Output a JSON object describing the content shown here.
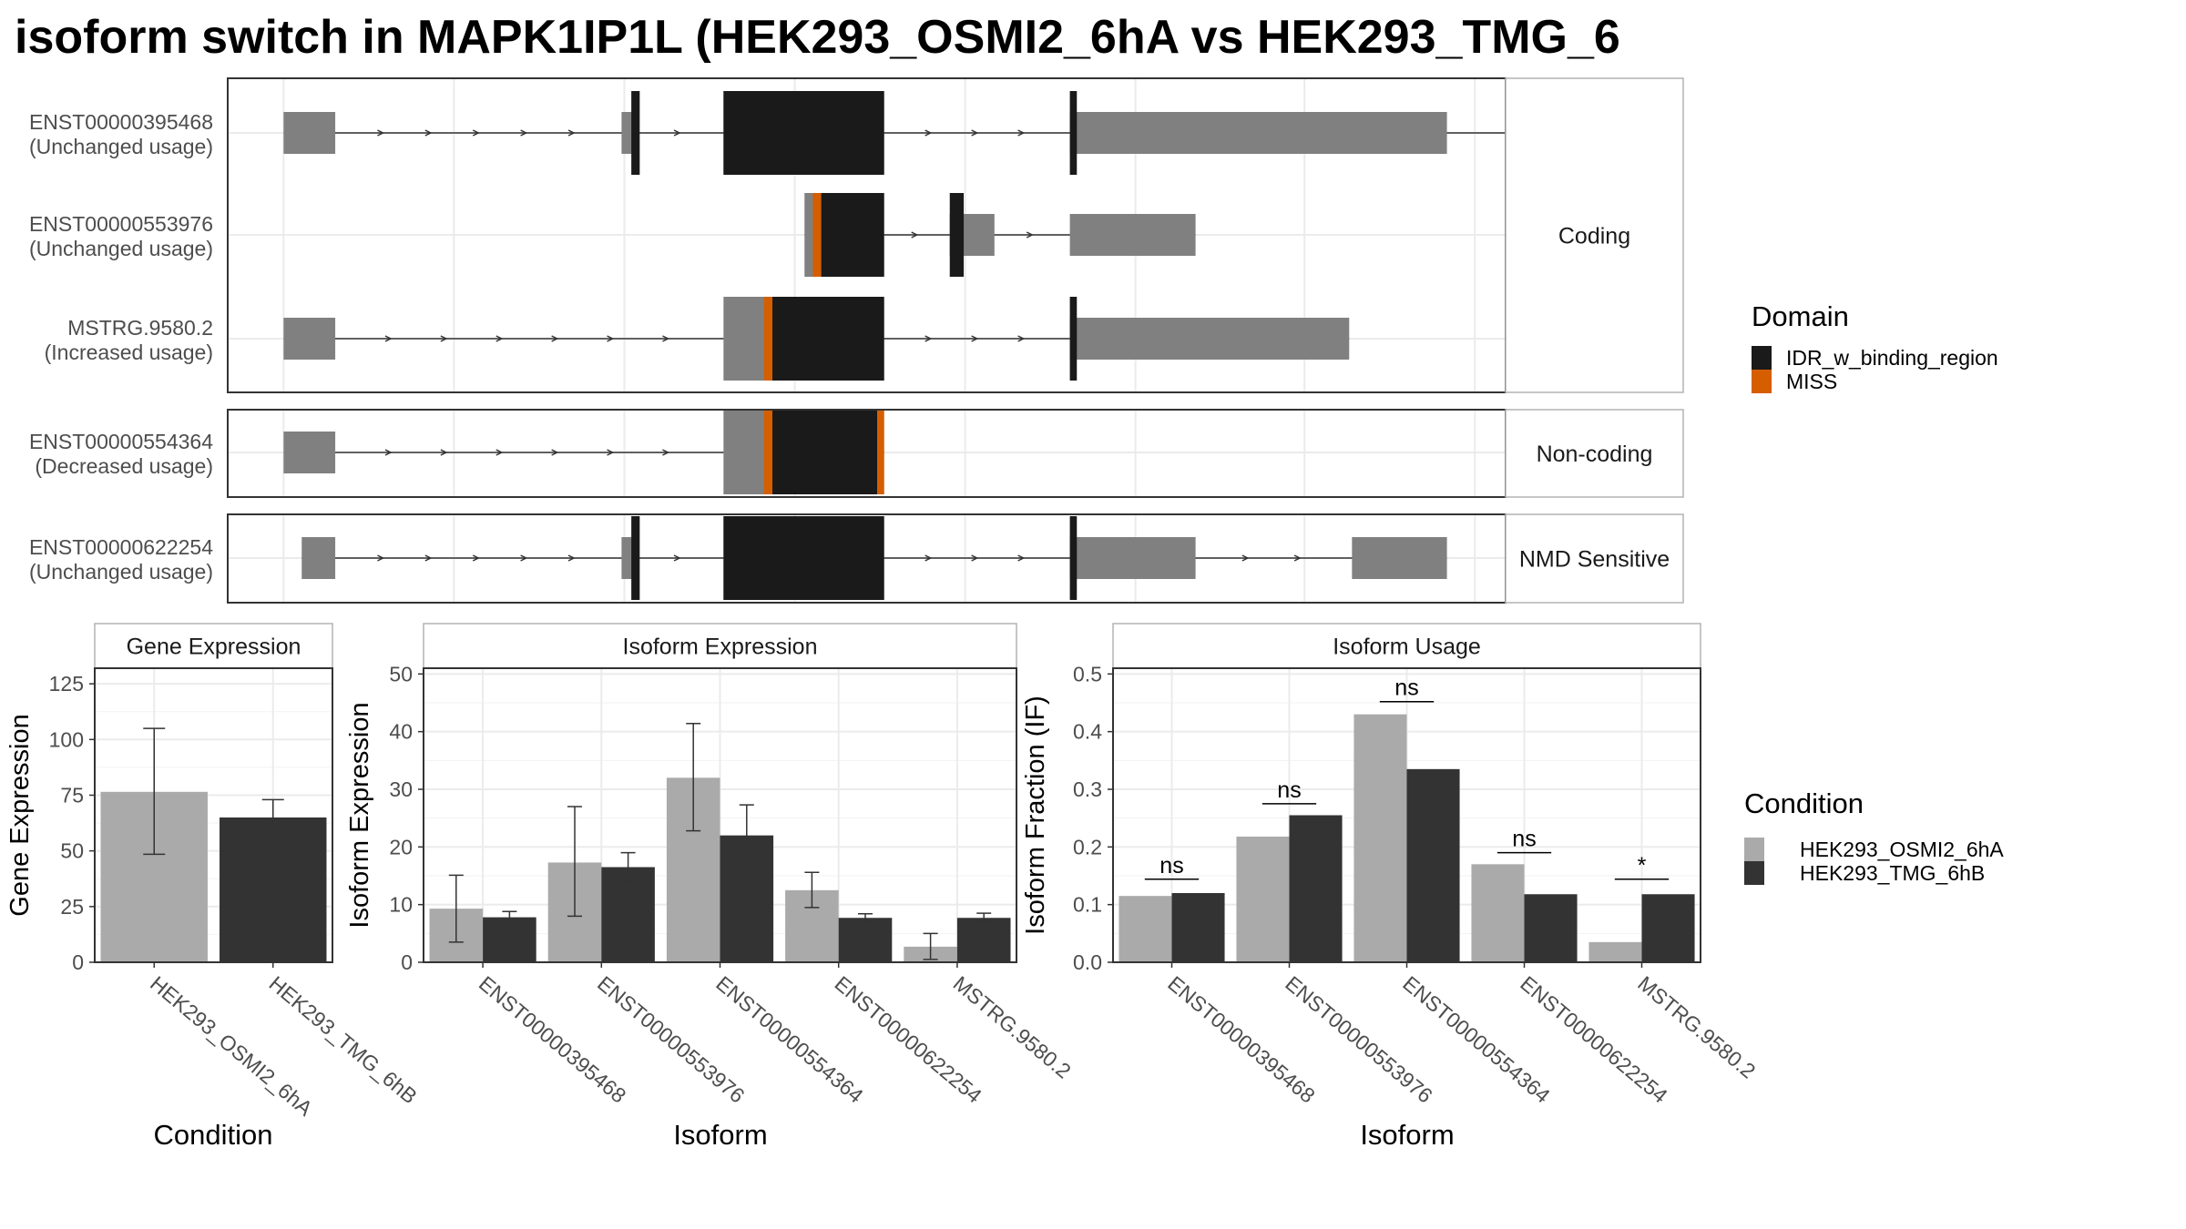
{
  "title": "isoform switch in MAPK1IP1L (HEK293_OSMI2_6hA vs HEK293_TMG_6",
  "colors": {
    "exon": "#808080",
    "idr": "#1a1a1a",
    "miss": "#d55e00",
    "condA": "#aaaaaa",
    "condB": "#333333",
    "grid": "#ebebeb",
    "panel_border": "#333333",
    "strip_bg": "#ffffff",
    "strip_border": "#b3b3b3"
  },
  "structure": {
    "groups": [
      {
        "label": "Coding",
        "rows": [
          0,
          1,
          2
        ]
      },
      {
        "label": "Non-coding",
        "rows": [
          3
        ]
      },
      {
        "label": "NMD Sensitive",
        "rows": [
          4
        ]
      }
    ],
    "transcripts": [
      {
        "id": "ENST00000395468",
        "usage": "(Unchanged usage)",
        "span": [
          40,
          1032
        ],
        "exons": [
          [
            40,
            77,
            "gene"
          ],
          [
            282,
            292,
            "small"
          ],
          [
            355,
            470,
            "big"
          ],
          [
            603,
            873,
            "gene"
          ]
        ],
        "domains": [
          [
            289,
            295,
            "idr"
          ],
          [
            355,
            470,
            "idr"
          ],
          [
            603,
            608,
            "idr"
          ]
        ]
      },
      {
        "id": "ENST00000553976",
        "usage": "(Unchanged usage)",
        "span": [
          413,
          693
        ],
        "exons": [
          [
            413,
            470,
            "big"
          ],
          [
            517,
            549,
            "small"
          ],
          [
            603,
            693,
            "gene"
          ]
        ],
        "domains": [
          [
            419,
            425,
            "miss"
          ],
          [
            425,
            470,
            "idr"
          ],
          [
            517,
            527,
            "idr"
          ]
        ]
      },
      {
        "id": "MSTRG.9580.2",
        "usage": "(Increased usage)",
        "span": [
          40,
          803
        ],
        "exons": [
          [
            40,
            77,
            "gene"
          ],
          [
            355,
            470,
            "big"
          ],
          [
            603,
            803,
            "gene"
          ]
        ],
        "domains": [
          [
            384,
            390,
            "miss"
          ],
          [
            390,
            470,
            "idr"
          ],
          [
            603,
            608,
            "idr"
          ]
        ]
      },
      {
        "id": "ENST00000554364",
        "usage": "(Decreased usage)",
        "span": [
          40,
          470
        ],
        "exons": [
          [
            40,
            77,
            "gene"
          ],
          [
            355,
            470,
            "big"
          ]
        ],
        "domains": [
          [
            384,
            390,
            "miss"
          ],
          [
            390,
            465,
            "idr"
          ],
          [
            465,
            470,
            "miss"
          ]
        ]
      },
      {
        "id": "ENST00000622254",
        "usage": "(Unchanged usage)",
        "span": [
          53,
          873
        ],
        "exons": [
          [
            53,
            77,
            "gene"
          ],
          [
            282,
            292,
            "small"
          ],
          [
            355,
            470,
            "big"
          ],
          [
            603,
            693,
            "gene"
          ],
          [
            805,
            873,
            "gene"
          ]
        ],
        "domains": [
          [
            289,
            295,
            "idr"
          ],
          [
            355,
            470,
            "idr"
          ],
          [
            603,
            608,
            "idr"
          ]
        ]
      }
    ],
    "xrange": [
      0,
      915
    ]
  },
  "legend_domain": {
    "title": "Domain",
    "items": [
      {
        "label": "IDR_w_binding_region",
        "color": "#1a1a1a"
      },
      {
        "label": "MISS",
        "color": "#d55e00"
      }
    ]
  },
  "legend_condition": {
    "title": "Condition",
    "items": [
      {
        "label": "HEK293_OSMI2_6hA",
        "color": "#aaaaaa"
      },
      {
        "label": "HEK293_TMG_6hB",
        "color": "#333333"
      }
    ]
  },
  "chart_data": [
    {
      "type": "bar",
      "strip": "Gene Expression",
      "xlabel": "Condition",
      "ylabel": "Gene Expression",
      "ylim": [
        0,
        132
      ],
      "yticks": [
        0,
        25,
        50,
        75,
        100,
        125
      ],
      "categories": [
        "HEK293_OSMI2_6hA",
        "HEK293_TMG_6hB"
      ],
      "values": [
        76.5,
        65
      ],
      "err_low": [
        48.5,
        57.5
      ],
      "err_high": [
        105,
        73
      ]
    },
    {
      "type": "bar",
      "strip": "Isoform Expression",
      "xlabel": "Isoform",
      "ylabel": "Isoform Expression",
      "ylim": [
        0,
        51
      ],
      "yticks": [
        0,
        10,
        20,
        30,
        40,
        50
      ],
      "categories": [
        "ENST00000395468",
        "ENST00000553976",
        "ENST00000554364",
        "ENST00000622254",
        "MSTRG.9580.2"
      ],
      "series": [
        {
          "name": "HEK293_OSMI2_6hA",
          "values": [
            9.3,
            17.3,
            32,
            12.5,
            2.7
          ],
          "err_low": [
            3.5,
            8,
            22.8,
            9.5,
            0.5
          ],
          "err_high": [
            15.1,
            27,
            41.4,
            15.6,
            5
          ]
        },
        {
          "name": "HEK293_TMG_6hB",
          "values": [
            7.8,
            16.5,
            22,
            7.7,
            7.7
          ],
          "err_low": [
            6.8,
            14,
            16.7,
            7,
            7
          ],
          "err_high": [
            8.8,
            19,
            27.3,
            8.4,
            8.5
          ]
        }
      ]
    },
    {
      "type": "bar",
      "strip": "Isoform Usage",
      "xlabel": "Isoform",
      "ylabel": "Isoform Fraction (IF)",
      "ylim": [
        0,
        0.51
      ],
      "yticks": [
        0.0,
        0.1,
        0.2,
        0.3,
        0.4,
        0.5
      ],
      "ytick_labels": [
        "0.0",
        "0.1",
        "0.2",
        "0.3",
        "0.4",
        "0.5"
      ],
      "categories": [
        "ENST00000395468",
        "ENST00000553976",
        "ENST00000554364",
        "ENST00000622254",
        "MSTRG.9580.2"
      ],
      "series": [
        {
          "name": "HEK293_OSMI2_6hA",
          "values": [
            0.115,
            0.218,
            0.43,
            0.17,
            0.035
          ]
        },
        {
          "name": "HEK293_TMG_6hB",
          "values": [
            0.12,
            0.255,
            0.335,
            0.118,
            0.118
          ]
        }
      ],
      "significance": [
        "ns",
        "ns",
        "ns",
        "ns",
        "*"
      ],
      "sig_y": [
        0.144,
        0.275,
        0.452,
        0.19,
        0.144
      ]
    }
  ]
}
